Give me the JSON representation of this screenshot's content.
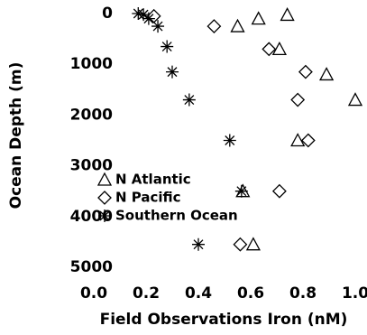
{
  "chart_data": {
    "type": "scatter",
    "xlabel": "Field Observations Iron (nM)",
    "ylabel": "Ocean Depth (m)",
    "xlim": [
      0,
      1
    ],
    "ylim": [
      -100,
      5100
    ],
    "y_inverted": true,
    "xticks": [
      {
        "value": 0,
        "label": "0.0"
      },
      {
        "value": 0.2,
        "label": "0.2"
      },
      {
        "value": 0.4,
        "label": "0.4"
      },
      {
        "value": 0.6,
        "label": "0.6"
      },
      {
        "value": 0.8,
        "label": "0.8"
      },
      {
        "value": 1,
        "label": "1.0"
      }
    ],
    "yticks": [
      0,
      1000,
      2000,
      3000,
      4000,
      5000
    ],
    "legend": "lower left",
    "series": [
      {
        "name": "N Atlantic",
        "marker": "triangle",
        "color": "#000000",
        "x": [
          0.74,
          0.63,
          0.55,
          0.71,
          0.89,
          1.0,
          0.78,
          0.57,
          0.61
        ],
        "values": [
          25,
          100,
          250,
          700,
          1200,
          1700,
          2500,
          3500,
          4550
        ]
      },
      {
        "name": "N Pacific",
        "marker": "diamond",
        "color": "#000000",
        "x": [
          0.23,
          0.46,
          0.67,
          0.81,
          0.78,
          0.82,
          0.71,
          0.56
        ],
        "values": [
          50,
          250,
          700,
          1150,
          1700,
          2500,
          3500,
          4550
        ]
      },
      {
        "name": "Southern Ocean",
        "marker": "asterisk",
        "color": "#000000",
        "x": [
          0.17,
          0.19,
          0.21,
          0.245,
          0.28,
          0.3,
          0.365,
          0.52,
          0.565,
          0.4
        ],
        "values": [
          0,
          20,
          100,
          250,
          650,
          1150,
          1700,
          2500,
          3500,
          4550
        ]
      }
    ]
  }
}
